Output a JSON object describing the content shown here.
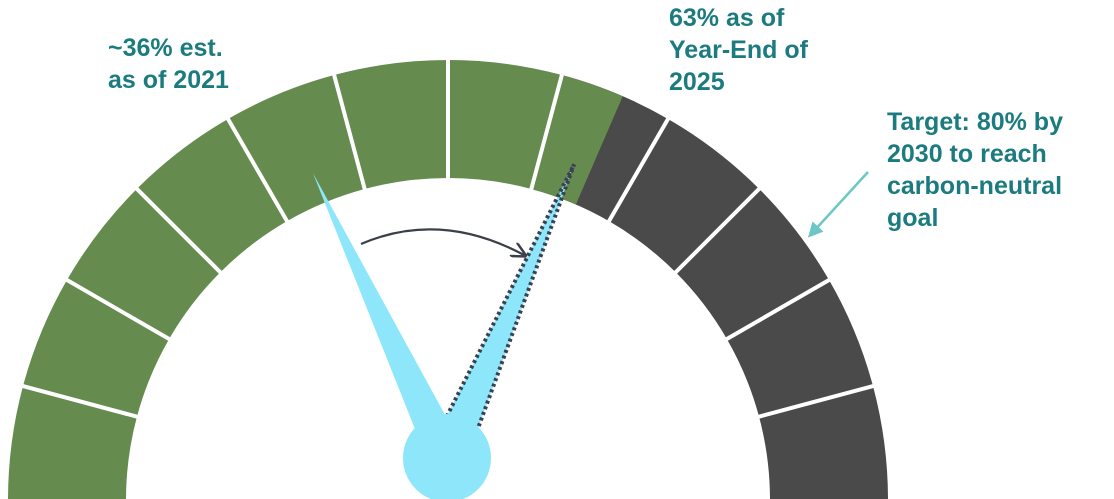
{
  "annotations": {
    "estimate_2021": "~36% est.\nas of 2021",
    "year_end_2025": "63% as of\nYear-End of\n2025",
    "target_2030": "Target: 80% by\n2030 to reach\ncarbon-neutral\ngoal"
  },
  "gauge": {
    "segments_total": 12,
    "segments_filled": 7,
    "value_2021_percent": 36,
    "value_2025_percent": 63,
    "target_percent": 80
  },
  "colors": {
    "filled_segment": "#658b4f",
    "remaining_segment": "#4a4a4a",
    "segment_divider": "#ffffff",
    "needle": "#8ee6fb",
    "needle_dotted_outline": "#3a4150",
    "label_text": "#1b7b7e",
    "target_pointer": "#6cc7c6",
    "progress_arrow": "#3a3f48"
  }
}
